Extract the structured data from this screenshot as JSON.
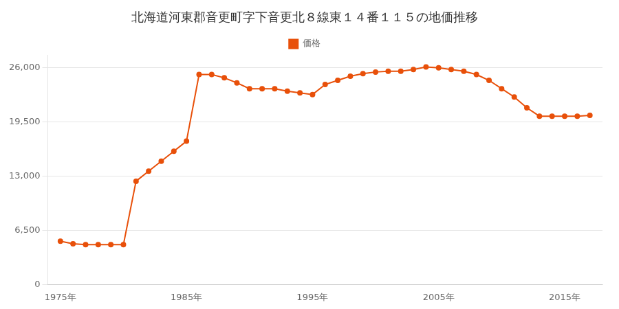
{
  "chart_data": {
    "type": "line",
    "title": "北海道河東郡音更町字下音更北８線東１４番１１５の地価推移",
    "x": [
      1975,
      1976,
      1977,
      1978,
      1979,
      1980,
      1981,
      1982,
      1983,
      1984,
      1985,
      1986,
      1987,
      1988,
      1989,
      1990,
      1991,
      1992,
      1993,
      1994,
      1995,
      1996,
      1997,
      1998,
      1999,
      2000,
      2001,
      2002,
      2003,
      2004,
      2005,
      2006,
      2007,
      2008,
      2009,
      2010,
      2011,
      2012,
      2013,
      2014,
      2015,
      2016,
      2017
    ],
    "series": [
      {
        "name": "価格",
        "color": "#E8500A",
        "marker": "circle",
        "values": [
          5200,
          4900,
          4800,
          4800,
          4800,
          4800,
          12400,
          13600,
          14800,
          16000,
          17200,
          25200,
          25200,
          24800,
          24200,
          23500,
          23500,
          23500,
          23200,
          23000,
          22800,
          24000,
          24500,
          25000,
          25300,
          25500,
          25600,
          25600,
          25800,
          26100,
          26000,
          25800,
          25600,
          25200,
          24500,
          23500,
          22500,
          21200,
          20200,
          20200,
          20200,
          20200,
          20300
        ]
      }
    ],
    "xlim": [
      1974,
      2018
    ],
    "xticks": [
      {
        "value": 1975,
        "label": "1975年"
      },
      {
        "value": 1985,
        "label": "1985年"
      },
      {
        "value": 1995,
        "label": "1995年"
      },
      {
        "value": 2005,
        "label": "2005年"
      },
      {
        "value": 2015,
        "label": "2015年"
      }
    ],
    "ylim": [
      0,
      27500
    ],
    "yticks": [
      0,
      {
        "value": 6500,
        "label": "6,500"
      },
      {
        "value": 13000,
        "label": "13,000"
      },
      {
        "value": 19500,
        "label": "19,500"
      },
      {
        "value": 26000,
        "label": "26,000"
      }
    ],
    "grid": "y",
    "legend": "top"
  }
}
